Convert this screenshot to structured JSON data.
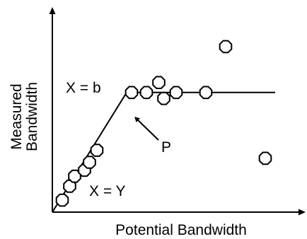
{
  "chart_data": {
    "type": "scatter",
    "title": "",
    "xlabel": "Potential Bandwidth",
    "ylabel_lines": [
      "Measured",
      "Bandwidth"
    ],
    "xlim": [
      0,
      10
    ],
    "ylim": [
      0,
      10
    ],
    "grid": false,
    "colors": {
      "axis": "#000000",
      "marker_stroke": "#000000",
      "marker_fill": "#ffffff",
      "line": "#000000"
    },
    "series": [
      {
        "x": [
          0.4,
          0.7,
          0.9,
          1.3,
          1.5,
          1.8,
          3.2,
          3.8,
          4.3,
          4.5,
          5.0,
          6.2,
          7.0,
          8.6
        ],
        "y": [
          0.6,
          1.3,
          1.8,
          2.1,
          2.5,
          3.1,
          6.0,
          6.0,
          6.5,
          5.7,
          6.0,
          6.0,
          8.3,
          2.7
        ]
      }
    ],
    "lines": [
      {
        "x": [
          0,
          3.0,
          9.0
        ],
        "y": [
          0,
          6.0,
          6.0
        ]
      }
    ],
    "annotations": {
      "x_eq_b": "X = b",
      "x_eq_y": "X = Y",
      "p_label": "P"
    }
  }
}
